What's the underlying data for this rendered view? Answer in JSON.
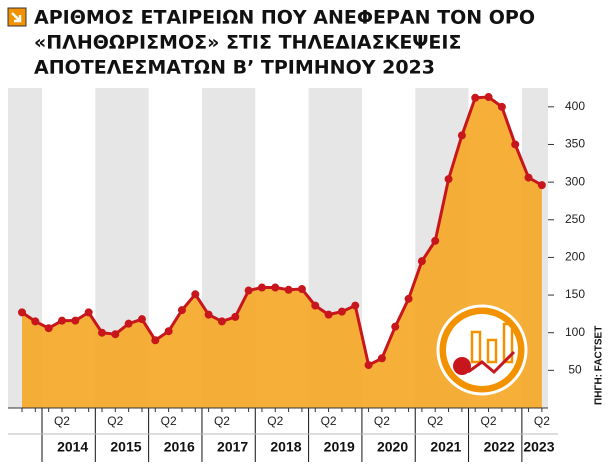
{
  "chart_data": {
    "type": "area",
    "title": [
      "ΑΡΙΘΜΟΣ ΕΤΑΙΡΕΙΩΝ ΠΟΥ ΑΝΕΦΕΡΑΝ ΤΟΝ ΟΡΟ",
      "«ΠΛΗΘΩΡΙΣΜΟΣ» ΣΤΙΣ ΤΗΛΕΔΙΑΣΚΕΨΕΙΣ",
      "ΑΠΟΤΕΛΕΣΜΑΤΩΝ Β’ ΤΡΙΜΗΝΟΥ 2023"
    ],
    "source": "ΠΗΓΗ: FACTSET",
    "categories": [
      null,
      null,
      null,
      "Q2",
      null,
      null,
      null,
      "Q2",
      null,
      null,
      null,
      "Q2",
      null,
      null,
      null,
      "Q2",
      null,
      null,
      null,
      "Q2",
      null,
      null,
      null,
      "Q2",
      null,
      null,
      null,
      "Q2",
      null,
      null,
      null,
      "Q2",
      null,
      null,
      null,
      "Q2",
      null,
      null,
      null,
      "Q2"
    ],
    "years": [
      "2014",
      "2015",
      "2016",
      "2017",
      "2018",
      "2019",
      "2020",
      "2021",
      "2022",
      "2023"
    ],
    "values": [
      127,
      115,
      106,
      116,
      116,
      127,
      100,
      98,
      112,
      118,
      90,
      102,
      130,
      151,
      124,
      115,
      121,
      156,
      160,
      160,
      157,
      158,
      136,
      124,
      128,
      136,
      57,
      66,
      108,
      145,
      195,
      222,
      304,
      362,
      412,
      413,
      400,
      350,
      306,
      296
    ],
    "color": "#c8161d",
    "fill_color": "#f5a623",
    "ylim": [
      0,
      425
    ],
    "yticks": [
      50,
      100,
      150,
      200,
      250,
      300,
      350,
      400
    ],
    "y_axis_side": "right"
  }
}
